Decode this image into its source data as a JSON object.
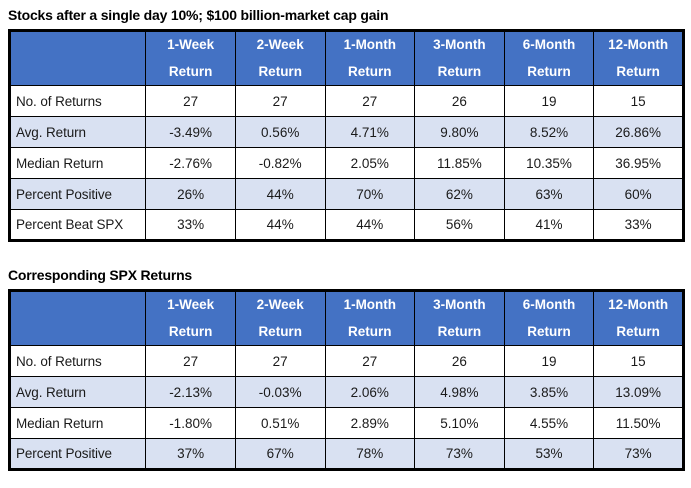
{
  "colors": {
    "header_bg": "#4472C4",
    "header_text": "#ffffff",
    "band_row_bg": "#D9E1F2",
    "plain_row_bg": "#ffffff",
    "border": "#000000",
    "body_text": "#1a1a1a"
  },
  "chart_data": [
    {
      "type": "table",
      "title": "Stocks after a single day 10%; $100 billion-market cap gain",
      "corner_label": "",
      "columns": [
        "1-Week\nReturn",
        "2-Week\nReturn",
        "1-Month\nReturn",
        "3-Month\nReturn",
        "6-Month\nReturn",
        "12-Month\nReturn"
      ],
      "rows": [
        {
          "label": "No. of Returns",
          "values": [
            "27",
            "27",
            "27",
            "26",
            "19",
            "15"
          ]
        },
        {
          "label": "Avg. Return",
          "values": [
            "-3.49%",
            "0.56%",
            "4.71%",
            "9.80%",
            "8.52%",
            "26.86%"
          ]
        },
        {
          "label": "Median Return",
          "values": [
            "-2.76%",
            "-0.82%",
            "2.05%",
            "11.85%",
            "10.35%",
            "36.95%"
          ]
        },
        {
          "label": "Percent Positive",
          "values": [
            "26%",
            "44%",
            "70%",
            "62%",
            "63%",
            "60%"
          ]
        },
        {
          "label": "Percent Beat SPX",
          "values": [
            "33%",
            "44%",
            "44%",
            "56%",
            "41%",
            "33%"
          ]
        }
      ]
    },
    {
      "type": "table",
      "title": "Corresponding SPX Returns",
      "corner_label": "",
      "columns": [
        "1-Week\nReturn",
        "2-Week\nReturn",
        "1-Month\nReturn",
        "3-Month\nReturn",
        "6-Month\nReturn",
        "12-Month\nReturn"
      ],
      "rows": [
        {
          "label": "No. of Returns",
          "values": [
            "27",
            "27",
            "27",
            "26",
            "19",
            "15"
          ]
        },
        {
          "label": "Avg. Return",
          "values": [
            "-2.13%",
            "-0.03%",
            "2.06%",
            "4.98%",
            "3.85%",
            "13.09%"
          ]
        },
        {
          "label": "Median Return",
          "values": [
            "-1.80%",
            "0.51%",
            "2.89%",
            "5.10%",
            "4.55%",
            "11.50%"
          ]
        },
        {
          "label": "Percent Positive",
          "values": [
            "37%",
            "67%",
            "78%",
            "73%",
            "53%",
            "73%"
          ]
        }
      ]
    }
  ]
}
